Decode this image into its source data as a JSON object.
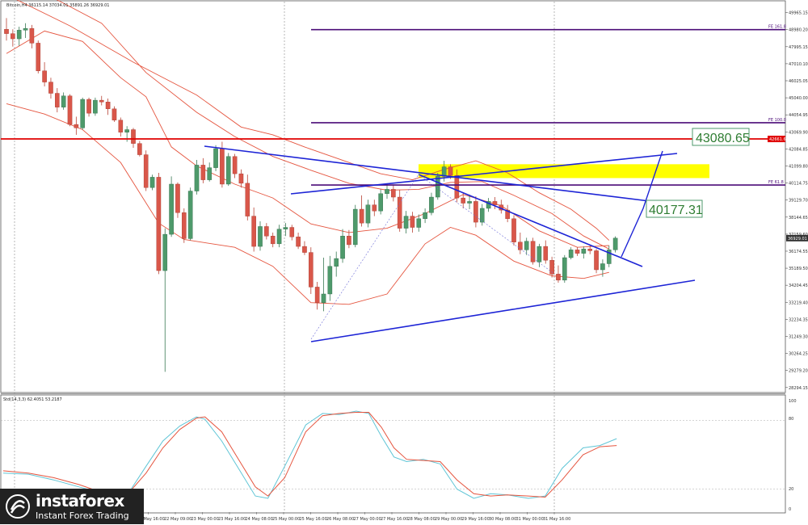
{
  "header": {
    "symbol_line": "Bitcoin,H4  36115.14 37034.01 35891.26 36929.01",
    "indicator_line": "Std(14,3,3) 62.4051 53.2187"
  },
  "chart_data": {
    "type": "candlestick",
    "symbol": "Bitcoin,H4",
    "ohlc_header": {
      "open": 36115.14,
      "high": 37034.01,
      "low": 35891.26,
      "close": 36929.01
    },
    "price_axis_ticks": [
      49965.15,
      48980.2,
      47995.15,
      47010.1,
      46025.05,
      45040.0,
      44054.95,
      43069.9,
      42084.85,
      41099.8,
      40114.75,
      39129.7,
      38144.65,
      37159.6,
      36174.55,
      35189.5,
      34204.45,
      33219.4,
      32234.35,
      31249.3,
      30264.25,
      29279.2,
      28294.15
    ],
    "price_axis_ticks_shown": [
      "49965.15",
      "48980.20",
      "47995.15",
      "47010.10",
      "46025.05",
      "45040.00",
      "44054.95",
      "43069.90",
      "42084.85",
      "41099.80",
      "40114.75",
      "39129.70",
      "38144.65",
      "37159.60",
      "36174.55",
      "35189.50",
      "34204.45",
      "33219.40",
      "32234.35",
      "31249.30",
      "30264.25",
      "29279.20",
      "28294.15"
    ],
    "ylim": [
      28050,
      50600
    ],
    "time_labels": [
      "18 May 2021",
      "19 May 00:00",
      "19 May 16:00",
      "20 May 08:00",
      "21 May 00:00",
      "21 May 16:00",
      "22 May 09:00",
      "23 May 00:00",
      "23 May 16:00",
      "24 May 08:00",
      "25 May 00:00",
      "25 May 16:00",
      "26 May 08:00",
      "27 May 00:00",
      "27 May 16:00",
      "28 May 08:00",
      "29 May 00:00",
      "29 May 16:00",
      "30 May 08:00",
      "31 May 00:00",
      "31 May 16:00"
    ],
    "candles": [
      [
        49000,
        49650,
        48350,
        48750
      ],
      [
        48750,
        49000,
        48000,
        48450
      ],
      [
        48450,
        49150,
        48050,
        48950
      ],
      [
        48950,
        49350,
        48500,
        49050
      ],
      [
        49050,
        49250,
        47900,
        48200
      ],
      [
        48200,
        48350,
        46450,
        46600
      ],
      [
        46600,
        47100,
        45700,
        45950
      ],
      [
        45950,
        46200,
        45000,
        45300
      ],
      [
        45300,
        45600,
        44200,
        44500
      ],
      [
        44500,
        45350,
        44350,
        45150
      ],
      [
        45150,
        45250,
        43400,
        43500
      ],
      [
        43500,
        43950,
        42900,
        43300
      ],
      [
        43300,
        45050,
        43200,
        44950
      ],
      [
        44950,
        45050,
        43950,
        44150
      ],
      [
        44150,
        45050,
        44000,
        44900
      ],
      [
        44900,
        45150,
        44600,
        44800
      ],
      [
        44800,
        45000,
        44050,
        44400
      ],
      [
        44400,
        44550,
        43650,
        43750
      ],
      [
        43750,
        43900,
        42800,
        43050
      ],
      [
        43050,
        43400,
        42500,
        43200
      ],
      [
        43200,
        43300,
        42150,
        42400
      ],
      [
        42400,
        42550,
        41650,
        41750
      ],
      [
        41750,
        42000,
        39650,
        39850
      ],
      [
        39850,
        40600,
        39700,
        40450
      ],
      [
        40450,
        40700,
        34850,
        35050
      ],
      [
        35050,
        37500,
        29200,
        37150
      ],
      [
        37150,
        40500,
        37000,
        40050
      ],
      [
        40050,
        40150,
        38100,
        38400
      ],
      [
        38400,
        38650,
        36650,
        36900
      ],
      [
        36900,
        39850,
        36800,
        39650
      ],
      [
        39650,
        41450,
        39450,
        41150
      ],
      [
        41150,
        41550,
        40100,
        40300
      ],
      [
        40300,
        41300,
        40200,
        41000
      ],
      [
        41000,
        42300,
        40800,
        42100
      ],
      [
        42100,
        42500,
        39850,
        40050
      ],
      [
        40050,
        41850,
        39950,
        41650
      ],
      [
        41650,
        41800,
        40400,
        40650
      ],
      [
        40650,
        40900,
        39850,
        40100
      ],
      [
        40100,
        40600,
        37950,
        38200
      ],
      [
        38200,
        38700,
        36150,
        36450
      ],
      [
        36450,
        37900,
        36200,
        37600
      ],
      [
        37600,
        37800,
        36850,
        37050
      ],
      [
        37050,
        37250,
        36400,
        36600
      ],
      [
        36600,
        37700,
        36400,
        37450
      ],
      [
        37450,
        37800,
        37050,
        37550
      ],
      [
        37550,
        37700,
        36800,
        37000
      ],
      [
        37000,
        37250,
        36300,
        36450
      ],
      [
        36450,
        36750,
        35950,
        36100
      ],
      [
        36100,
        36400,
        33700,
        34100
      ],
      [
        34100,
        34400,
        32800,
        33200
      ],
      [
        33200,
        35800,
        32700,
        33700
      ],
      [
        33700,
        35900,
        33300,
        35300
      ],
      [
        35300,
        36150,
        34700,
        35750
      ],
      [
        35750,
        37450,
        35500,
        37050
      ],
      [
        37050,
        37400,
        36350,
        36550
      ],
      [
        36550,
        38850,
        36400,
        38600
      ],
      [
        38600,
        39400,
        37600,
        37800
      ],
      [
        37800,
        39150,
        37550,
        38850
      ],
      [
        38850,
        39150,
        38200,
        38500
      ],
      [
        38500,
        39750,
        38300,
        39500
      ],
      [
        39500,
        40100,
        39200,
        39750
      ],
      [
        39750,
        40000,
        39050,
        39300
      ],
      [
        39300,
        39700,
        37300,
        37500
      ],
      [
        37500,
        38500,
        37200,
        38200
      ],
      [
        38200,
        38450,
        37250,
        37550
      ],
      [
        37550,
        38300,
        37300,
        38050
      ],
      [
        38050,
        38650,
        37800,
        38400
      ],
      [
        38400,
        39550,
        38250,
        39300
      ],
      [
        39300,
        40700,
        39150,
        40500
      ],
      [
        40500,
        41400,
        40200,
        41050
      ],
      [
        41050,
        41200,
        40350,
        40550
      ],
      [
        40550,
        40900,
        39000,
        39250
      ],
      [
        39250,
        39550,
        38650,
        38950
      ],
      [
        38950,
        39450,
        38600,
        39050
      ],
      [
        39050,
        39350,
        37550,
        37850
      ],
      [
        37850,
        38900,
        37650,
        38650
      ],
      [
        38650,
        39250,
        38450,
        39050
      ],
      [
        39050,
        39300,
        38600,
        38850
      ],
      [
        38850,
        39150,
        38350,
        38550
      ],
      [
        38550,
        38850,
        37850,
        38050
      ],
      [
        38050,
        38250,
        36500,
        36700
      ],
      [
        36700,
        37250,
        36000,
        36250
      ],
      [
        36250,
        36950,
        35950,
        36750
      ],
      [
        36750,
        36950,
        35400,
        35550
      ],
      [
        35550,
        36600,
        35250,
        36450
      ],
      [
        36450,
        36800,
        35450,
        35650
      ],
      [
        35650,
        35850,
        34650,
        34850
      ],
      [
        34850,
        35350,
        34350,
        34500
      ],
      [
        34500,
        35950,
        34350,
        35800
      ],
      [
        35800,
        36400,
        35700,
        36250
      ],
      [
        36250,
        36400,
        35900,
        36050
      ],
      [
        36050,
        36450,
        35750,
        36300
      ],
      [
        36300,
        36550,
        36000,
        36200
      ],
      [
        36200,
        36300,
        34900,
        35100
      ],
      [
        35100,
        35700,
        34700,
        35450
      ],
      [
        35450,
        36500,
        35250,
        36250
      ],
      [
        36250,
        37034,
        36100,
        36929
      ]
    ],
    "moving_averages": {
      "ma_outer_upper": [
        [
          0,
          51000
        ],
        [
          10,
          49200
        ],
        [
          20,
          47100
        ],
        [
          30,
          45200
        ],
        [
          37,
          43350
        ],
        [
          42,
          42900
        ],
        [
          47,
          42200
        ],
        [
          54,
          41300
        ],
        [
          59,
          40650
        ],
        [
          64,
          40300
        ],
        [
          69,
          40900
        ],
        [
          74,
          41400
        ],
        [
          79,
          40700
        ],
        [
          84,
          39550
        ],
        [
          89,
          38600
        ],
        [
          93,
          37500
        ],
        [
          95,
          36800
        ]
      ],
      "ma_inner": [
        [
          0,
          51600
        ],
        [
          8,
          50700
        ],
        [
          15,
          49350
        ],
        [
          22,
          46500
        ],
        [
          30,
          44200
        ],
        [
          36,
          42800
        ],
        [
          42,
          41650
        ],
        [
          48,
          40850
        ],
        [
          54,
          40100
        ],
        [
          60,
          39700
        ],
        [
          65,
          39750
        ],
        [
          70,
          40150
        ],
        [
          75,
          40200
        ],
        [
          80,
          39400
        ],
        [
          86,
          38350
        ],
        [
          91,
          37050
        ],
        [
          95,
          36300
        ]
      ],
      "ma_middle": [
        [
          0,
          47600
        ],
        [
          6,
          48900
        ],
        [
          12,
          48300
        ],
        [
          18,
          46200
        ],
        [
          22,
          45100
        ],
        [
          26,
          42200
        ],
        [
          30,
          41100
        ],
        [
          36,
          40050
        ],
        [
          42,
          39250
        ],
        [
          48,
          37750
        ],
        [
          54,
          37250
        ],
        [
          60,
          37500
        ],
        [
          66,
          38350
        ],
        [
          72,
          39450
        ],
        [
          78,
          38800
        ],
        [
          84,
          37350
        ],
        [
          90,
          36400
        ],
        [
          95,
          36500
        ]
      ],
      "ma_lower": [
        [
          0,
          44700
        ],
        [
          6,
          44100
        ],
        [
          12,
          43200
        ],
        [
          18,
          41300
        ],
        [
          24,
          37800
        ],
        [
          28,
          36850
        ],
        [
          36,
          36400
        ],
        [
          42,
          35300
        ],
        [
          48,
          33200
        ],
        [
          54,
          33100
        ],
        [
          60,
          33700
        ],
        [
          66,
          36600
        ],
        [
          70,
          37550
        ],
        [
          74,
          37100
        ],
        [
          80,
          35600
        ],
        [
          86,
          34750
        ],
        [
          91,
          34600
        ],
        [
          95,
          34950
        ]
      ]
    },
    "levels": [
      {
        "label": "FE 161.8",
        "price": 48980,
        "color": "#4b0c78"
      },
      {
        "label": "FE 100.0",
        "price": 43600,
        "color": "#4b0c78"
      },
      {
        "label": "42661.61",
        "price": 42661.61,
        "color": "#e00000"
      },
      {
        "label": "FE 61.8",
        "price": 40000,
        "color": "#4b0c78"
      }
    ],
    "yellow_zone": [
      40400,
      41200
    ],
    "annotations": [
      {
        "text": "43080.65",
        "color": "#2e7d32"
      },
      {
        "text": "40177.31",
        "color": "#2e7d32"
      }
    ],
    "current_price": "36929.01",
    "stochastic": {
      "label": "Std(14,3,3) 62.4051 53.2187",
      "ylim": [
        0,
        100
      ],
      "ticks": [
        "100",
        "80",
        "20",
        "0"
      ],
      "k": [
        [
          0,
          34
        ],
        [
          6,
          33
        ],
        [
          12,
          28
        ],
        [
          18,
          22
        ],
        [
          22,
          18
        ],
        [
          26,
          11
        ],
        [
          29,
          12
        ],
        [
          34,
          40
        ],
        [
          38,
          62
        ],
        [
          42,
          75
        ],
        [
          46,
          83
        ],
        [
          48,
          81
        ],
        [
          52,
          62
        ],
        [
          56,
          38
        ],
        [
          60,
          14
        ],
        [
          63,
          12
        ],
        [
          67,
          40
        ],
        [
          72,
          76
        ],
        [
          76,
          86
        ],
        [
          80,
          85
        ],
        [
          84,
          88
        ],
        [
          87,
          86
        ],
        [
          90,
          66
        ],
        [
          93,
          48
        ],
        [
          96,
          44
        ],
        [
          100,
          46
        ],
        [
          104,
          42
        ],
        [
          108,
          20
        ],
        [
          112,
          12
        ],
        [
          116,
          16
        ],
        [
          120,
          15
        ],
        [
          125,
          12
        ],
        [
          129,
          14
        ],
        [
          133,
          38
        ],
        [
          138,
          56
        ],
        [
          142,
          58
        ],
        [
          146,
          64
        ]
      ],
      "d": [
        [
          0,
          36
        ],
        [
          6,
          34
        ],
        [
          12,
          30
        ],
        [
          18,
          24
        ],
        [
          22,
          19
        ],
        [
          26,
          14
        ],
        [
          29,
          13
        ],
        [
          34,
          34
        ],
        [
          38,
          56
        ],
        [
          42,
          72
        ],
        [
          46,
          82
        ],
        [
          48,
          83
        ],
        [
          52,
          70
        ],
        [
          56,
          46
        ],
        [
          60,
          22
        ],
        [
          63,
          14
        ],
        [
          67,
          30
        ],
        [
          72,
          70
        ],
        [
          76,
          84
        ],
        [
          80,
          86
        ],
        [
          84,
          87
        ],
        [
          87,
          87
        ],
        [
          90,
          74
        ],
        [
          93,
          56
        ],
        [
          96,
          46
        ],
        [
          100,
          45
        ],
        [
          104,
          44
        ],
        [
          108,
          28
        ],
        [
          112,
          16
        ],
        [
          116,
          14
        ],
        [
          120,
          15
        ],
        [
          125,
          14
        ],
        [
          129,
          13
        ],
        [
          133,
          28
        ],
        [
          138,
          50
        ],
        [
          142,
          57
        ],
        [
          146,
          58
        ]
      ]
    }
  },
  "logo": {
    "brand": "instaforex",
    "tagline": "Instant Forex Trading"
  }
}
